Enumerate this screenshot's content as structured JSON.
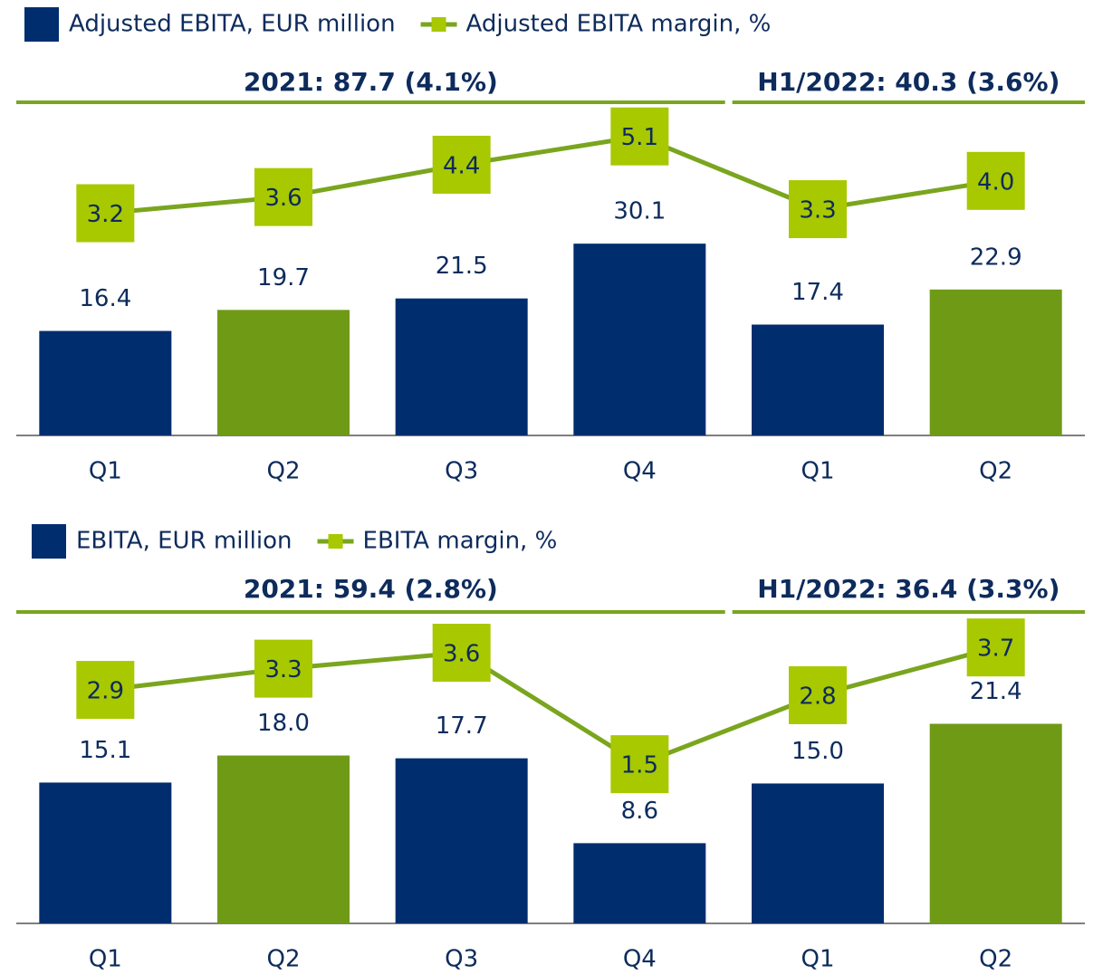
{
  "chart_data": [
    {
      "type": "bar",
      "categories": [
        "Q1",
        "Q2",
        "Q3",
        "Q4",
        "Q1",
        "Q2"
      ],
      "annotations": [
        "2021: 87.7 (4.1%)",
        "H1/2022: 40.3 (3.6%)"
      ],
      "series": [
        {
          "name": "Adjusted EBITA, EUR million",
          "type": "bar",
          "color": "#002d6e",
          "colors": [
            "#002d6e",
            "#6f9a16",
            "#002d6e",
            "#002d6e",
            "#002d6e",
            "#6f9a16"
          ],
          "values": [
            16.4,
            19.7,
            21.5,
            30.1,
            17.4,
            22.9
          ]
        },
        {
          "name": "Adjusted EBITA margin, %",
          "type": "line",
          "axis": "y2",
          "color": "#a8c800",
          "line_color": "#7aa51e",
          "values": [
            3.2,
            3.6,
            4.4,
            5.1,
            3.3,
            4.0
          ],
          "value_labels": [
            "3.2",
            "3.6",
            "4.4",
            "5.1",
            "3.3",
            "4.0"
          ]
        }
      ],
      "ylim": [
        0,
        52
      ],
      "y2lim": [
        -2.3,
        5.9
      ]
    },
    {
      "type": "bar",
      "categories": [
        "Q1",
        "Q2",
        "Q3",
        "Q4",
        "Q1",
        "Q2"
      ],
      "annotations": [
        "2021: 59.4 (2.8%)",
        "H1/2022: 36.4 (3.3%)"
      ],
      "series": [
        {
          "name": "EBITA, EUR million",
          "type": "bar",
          "color": "#002d6e",
          "colors": [
            "#002d6e",
            "#6f9a16",
            "#002d6e",
            "#002d6e",
            "#002d6e",
            "#6f9a16"
          ],
          "values": [
            15.1,
            18.0,
            17.7,
            8.6,
            15.0,
            21.4
          ],
          "value_labels": [
            "15.1",
            "18.0",
            "17.7",
            "8.6",
            "15.0",
            "21.4"
          ]
        },
        {
          "name": "EBITA margin, %",
          "type": "line",
          "axis": "y2",
          "color": "#a8c800",
          "line_color": "#7aa51e",
          "values": [
            2.9,
            3.3,
            3.6,
            1.5,
            2.8,
            3.7
          ]
        }
      ],
      "ylim": [
        0,
        33
      ],
      "y2lim": [
        -1.5,
        4.3
      ]
    }
  ]
}
